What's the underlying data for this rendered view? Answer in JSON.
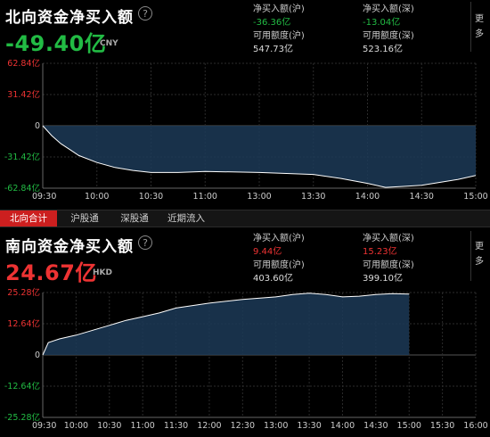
{
  "north": {
    "title": "北向资金净买入额",
    "help_icon": "question-circle-icon",
    "value": "-49.40亿",
    "currency": "CNY",
    "value_color": "#22bb44",
    "stats": {
      "sh_net_label": "净买入额(沪)",
      "sh_net_value": "-36.36亿",
      "sz_net_label": "净买入额(深)",
      "sz_net_value": "-13.04亿",
      "sh_quota_label": "可用额度(沪)",
      "sh_quota_value": "547.73亿",
      "sz_quota_label": "可用额度(深)",
      "sz_quota_value": "523.16亿"
    },
    "more_label": "更多"
  },
  "tabs": [
    "北向合计",
    "沪股通",
    "深股通",
    "近期流入"
  ],
  "south": {
    "title": "南向资金净买入额",
    "help_icon": "question-circle-icon",
    "value": "24.67亿",
    "currency": "HKD",
    "value_color": "#ee3333",
    "stats": {
      "sh_net_label": "净买入额(沪)",
      "sh_net_value": "9.44亿",
      "sz_net_label": "净买入额(深)",
      "sz_net_value": "15.23亿",
      "sh_quota_label": "可用额度(沪)",
      "sh_quota_value": "403.60亿",
      "sz_quota_label": "可用额度(深)",
      "sz_quota_value": "399.10亿"
    },
    "more_label": "更多"
  },
  "chart_data": [
    {
      "type": "area",
      "yticks": [
        "62.84亿",
        "31.42亿",
        "0",
        "-31.42亿",
        "-62.84亿"
      ],
      "ylim": [
        -62.84,
        62.84
      ],
      "xticks": [
        "09:30",
        "10:00",
        "10:30",
        "11:00",
        "13:00",
        "13:30",
        "14:00",
        "14:30",
        "15:00"
      ],
      "x": [
        "09:30",
        "09:35",
        "09:40",
        "09:45",
        "09:50",
        "10:00",
        "10:10",
        "10:20",
        "10:30",
        "10:45",
        "11:00",
        "11:15",
        "11:30",
        "13:00",
        "13:15",
        "13:30",
        "13:45",
        "14:00",
        "14:10",
        "14:20",
        "14:30",
        "14:40",
        "14:50",
        "15:00"
      ],
      "values": [
        0,
        -10,
        -18,
        -24,
        -30,
        -37,
        -42,
        -45,
        -47,
        -47,
        -46,
        -46.5,
        -47,
        -47,
        -48,
        -49,
        -53,
        -58,
        -62,
        -61,
        -60,
        -57,
        -54,
        -50
      ],
      "line_color": "#ffffff",
      "fill_color": "#1c3a57"
    },
    {
      "type": "area",
      "yticks": [
        "25.28亿",
        "12.64亿",
        "0",
        "-12.64亿",
        "-25.28亿"
      ],
      "ylim": [
        -25.28,
        25.28
      ],
      "xticks": [
        "09:30",
        "10:00",
        "10:30",
        "11:00",
        "11:30",
        "12:00",
        "12:30",
        "13:00",
        "13:30",
        "14:00",
        "14:30",
        "15:00",
        "15:30",
        "16:00"
      ],
      "x": [
        "09:30",
        "09:35",
        "09:45",
        "10:00",
        "10:15",
        "10:30",
        "10:45",
        "11:00",
        "11:15",
        "11:30",
        "12:00",
        "12:30",
        "13:00",
        "13:15",
        "13:30",
        "13:45",
        "14:00",
        "14:15",
        "14:30",
        "14:45",
        "15:00"
      ],
      "values": [
        0,
        5,
        6.5,
        8,
        10,
        12,
        14,
        15.5,
        17,
        19,
        21,
        22.5,
        23.5,
        24.5,
        25,
        24.5,
        23.5,
        23.8,
        24.5,
        24.8,
        24.67
      ],
      "line_color": "#ffffff",
      "fill_color": "#1c3a57"
    }
  ]
}
